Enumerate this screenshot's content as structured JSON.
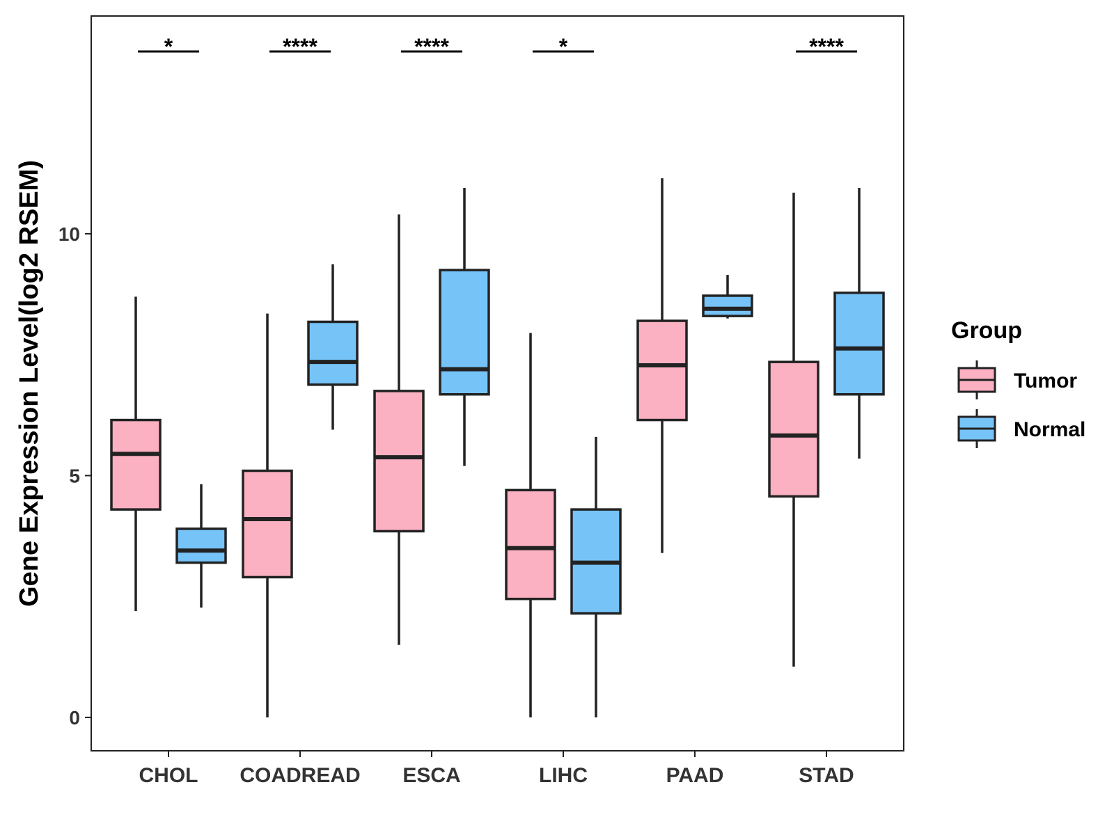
{
  "chart_data": {
    "type": "boxplot",
    "title": "",
    "xlabel": "",
    "ylabel": "Gene Expression Level(log2 RSEM)",
    "ylim": [
      -0.67,
      14.5
    ],
    "yticks": [
      0,
      5,
      10
    ],
    "categories": [
      "CHOL",
      "COADREAD",
      "ESCA",
      "LIHC",
      "PAAD",
      "STAD"
    ],
    "legend": {
      "title": "Group",
      "placement": "right",
      "entries": [
        {
          "name": "Tumor",
          "color": "#FBB1C2"
        },
        {
          "name": "Normal",
          "color": "#76C3F8"
        }
      ]
    },
    "series": [
      {
        "name": "Tumor",
        "color": "#FBB1C2",
        "boxes": [
          {
            "category": "CHOL",
            "min": 2.2,
            "q1": 4.3,
            "median": 5.45,
            "q3": 6.15,
            "max": 8.7
          },
          {
            "category": "COADREAD",
            "min": 0.0,
            "q1": 2.9,
            "median": 4.1,
            "q3": 5.1,
            "max": 8.35
          },
          {
            "category": "ESCA",
            "min": 1.5,
            "q1": 3.85,
            "median": 5.38,
            "q3": 6.75,
            "max": 10.4
          },
          {
            "category": "LIHC",
            "min": 0.0,
            "q1": 2.45,
            "median": 3.5,
            "q3": 4.7,
            "max": 7.95
          },
          {
            "category": "PAAD",
            "min": 3.4,
            "q1": 6.15,
            "median": 7.28,
            "q3": 8.2,
            "max": 11.15
          },
          {
            "category": "STAD",
            "min": 1.05,
            "q1": 4.57,
            "median": 5.83,
            "q3": 7.35,
            "max": 10.85
          }
        ]
      },
      {
        "name": "Normal",
        "color": "#76C3F8",
        "boxes": [
          {
            "category": "CHOL",
            "min": 2.27,
            "q1": 3.2,
            "median": 3.45,
            "q3": 3.9,
            "max": 4.82
          },
          {
            "category": "COADREAD",
            "min": 5.95,
            "q1": 6.88,
            "median": 7.35,
            "q3": 8.18,
            "max": 9.37
          },
          {
            "category": "ESCA",
            "min": 5.2,
            "q1": 6.68,
            "median": 7.2,
            "q3": 9.25,
            "max": 10.95
          },
          {
            "category": "LIHC",
            "min": 0.0,
            "q1": 2.15,
            "median": 3.2,
            "q3": 4.3,
            "max": 5.8
          },
          {
            "category": "PAAD",
            "min": 8.25,
            "q1": 8.3,
            "median": 8.45,
            "q3": 8.72,
            "max": 9.15
          },
          {
            "category": "STAD",
            "min": 5.35,
            "q1": 6.68,
            "median": 7.63,
            "q3": 8.78,
            "max": 10.95
          }
        ]
      }
    ],
    "significance": [
      {
        "category": "CHOL",
        "label": "*"
      },
      {
        "category": "COADREAD",
        "label": "****"
      },
      {
        "category": "ESCA",
        "label": "****"
      },
      {
        "category": "LIHC",
        "label": "*"
      },
      {
        "category": "PAAD",
        "label": ""
      },
      {
        "category": "STAD",
        "label": "****"
      }
    ]
  }
}
